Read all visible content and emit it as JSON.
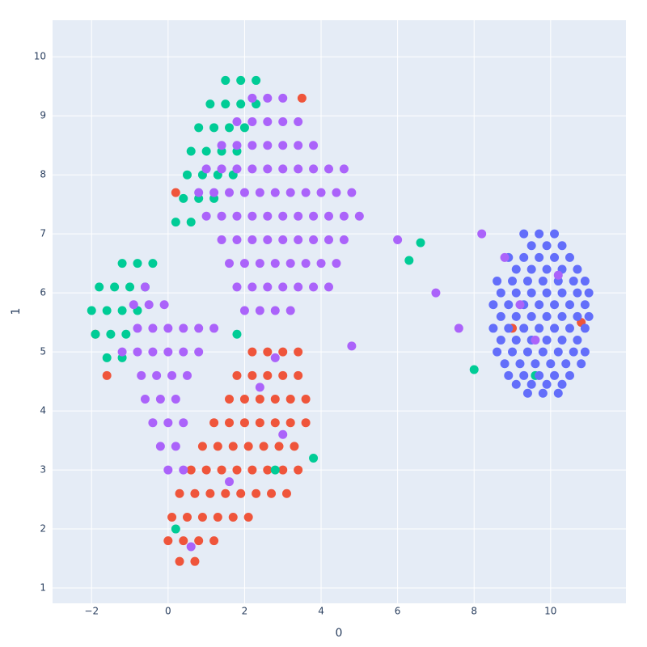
{
  "chart_data": {
    "type": "scatter",
    "x_label": "0",
    "y_label": "1",
    "xlim": [
      -3.02,
      11.97
    ],
    "ylim": [
      0.74,
      10.62
    ],
    "xticks": [
      {
        "value": -2,
        "label": "−2"
      },
      0,
      2,
      4,
      6,
      8,
      10
    ],
    "yticks": [
      1,
      2,
      3,
      4,
      5,
      6,
      7,
      8,
      9,
      10
    ],
    "grid": true,
    "series": [
      {
        "color": "#ef553b",
        "x": [
          2.2,
          2.6,
          3.0,
          3.4,
          1.8,
          2.2,
          2.6,
          3.0,
          3.4,
          1.6,
          2.0,
          2.4,
          2.8,
          3.2,
          3.6,
          1.2,
          1.6,
          2.0,
          2.4,
          2.8,
          3.2,
          3.6,
          0.9,
          1.3,
          1.7,
          2.1,
          2.5,
          2.9,
          3.3,
          0.6,
          1.0,
          1.4,
          1.8,
          2.2,
          2.6,
          3.0,
          3.4,
          0.3,
          0.7,
          1.1,
          1.5,
          1.9,
          2.3,
          2.7,
          3.1,
          0.1,
          0.5,
          0.9,
          1.3,
          1.7,
          2.1,
          0.0,
          0.4,
          0.8,
          1.2,
          0.3,
          0.7,
          -1.9,
          -1.6,
          3.5,
          10.8,
          9.0,
          0.2
        ],
        "values": [
          5.0,
          5.0,
          5.0,
          5.0,
          4.6,
          4.6,
          4.6,
          4.6,
          4.6,
          4.2,
          4.2,
          4.2,
          4.2,
          4.2,
          4.2,
          3.8,
          3.8,
          3.8,
          3.8,
          3.8,
          3.8,
          3.8,
          3.4,
          3.4,
          3.4,
          3.4,
          3.4,
          3.4,
          3.4,
          3.0,
          3.0,
          3.0,
          3.0,
          3.0,
          3.0,
          3.0,
          3.0,
          2.6,
          2.6,
          2.6,
          2.6,
          2.6,
          2.6,
          2.6,
          2.6,
          2.2,
          2.2,
          2.2,
          2.2,
          2.2,
          2.2,
          1.8,
          1.8,
          1.8,
          1.8,
          1.45,
          1.45,
          5.3,
          4.6,
          9.3,
          5.5,
          5.4,
          7.7
        ]
      },
      {
        "color": "#00cc96",
        "x": [
          1.5,
          1.9,
          2.3,
          1.1,
          1.5,
          1.9,
          2.3,
          0.8,
          1.2,
          1.6,
          2.0,
          0.6,
          1.0,
          1.4,
          1.8,
          0.5,
          0.9,
          1.3,
          1.7,
          0.4,
          0.8,
          1.2,
          0.2,
          0.6,
          -1.2,
          -0.8,
          -0.4,
          -1.8,
          -1.4,
          -1.0,
          -0.6,
          -2.0,
          -1.6,
          -1.2,
          -0.8,
          -1.9,
          -1.5,
          -1.1,
          -1.6,
          -1.2,
          6.6,
          6.3,
          1.8,
          2.8,
          0.2,
          9.6,
          8.0,
          3.8
        ],
        "values": [
          9.6,
          9.6,
          9.6,
          9.2,
          9.2,
          9.2,
          9.2,
          8.8,
          8.8,
          8.8,
          8.8,
          8.4,
          8.4,
          8.4,
          8.4,
          8.0,
          8.0,
          8.0,
          8.0,
          7.6,
          7.6,
          7.6,
          7.2,
          7.2,
          6.5,
          6.5,
          6.5,
          6.1,
          6.1,
          6.1,
          6.1,
          5.7,
          5.7,
          5.7,
          5.7,
          5.3,
          5.3,
          5.3,
          4.9,
          4.9,
          6.85,
          6.55,
          5.3,
          3.0,
          2.0,
          4.6,
          4.7,
          3.2
        ]
      },
      {
        "color": "#636efa",
        "x": [
          9.3,
          9.7,
          10.1,
          9.5,
          9.9,
          10.3,
          8.9,
          9.3,
          9.7,
          10.1,
          10.5,
          9.1,
          9.5,
          9.9,
          10.3,
          10.7,
          8.6,
          9.0,
          9.4,
          9.8,
          10.2,
          10.6,
          10.9,
          8.7,
          9.1,
          9.5,
          9.9,
          10.3,
          10.7,
          11.0,
          8.5,
          8.9,
          9.3,
          9.7,
          10.1,
          10.5,
          10.9,
          8.7,
          9.1,
          9.5,
          9.9,
          10.3,
          10.7,
          11.0,
          8.5,
          8.9,
          9.3,
          9.7,
          10.1,
          10.5,
          10.9,
          8.7,
          9.1,
          9.5,
          9.9,
          10.3,
          10.7,
          8.6,
          9.0,
          9.4,
          9.8,
          10.2,
          10.6,
          10.9,
          8.8,
          9.2,
          9.6,
          10.0,
          10.4,
          10.8,
          8.9,
          9.3,
          9.7,
          10.1,
          10.5,
          9.1,
          9.5,
          9.9,
          10.3,
          9.4,
          9.8,
          10.2
        ],
        "values": [
          7.0,
          7.0,
          7.0,
          6.8,
          6.8,
          6.8,
          6.6,
          6.6,
          6.6,
          6.6,
          6.6,
          6.4,
          6.4,
          6.4,
          6.4,
          6.4,
          6.2,
          6.2,
          6.2,
          6.2,
          6.2,
          6.2,
          6.2,
          6.0,
          6.0,
          6.0,
          6.0,
          6.0,
          6.0,
          6.0,
          5.8,
          5.8,
          5.8,
          5.8,
          5.8,
          5.8,
          5.8,
          5.6,
          5.6,
          5.6,
          5.6,
          5.6,
          5.6,
          5.6,
          5.4,
          5.4,
          5.4,
          5.4,
          5.4,
          5.4,
          5.4,
          5.2,
          5.2,
          5.2,
          5.2,
          5.2,
          5.2,
          5.0,
          5.0,
          5.0,
          5.0,
          5.0,
          5.0,
          5.0,
          4.8,
          4.8,
          4.8,
          4.8,
          4.8,
          4.8,
          4.6,
          4.6,
          4.6,
          4.6,
          4.6,
          4.45,
          4.45,
          4.45,
          4.45,
          4.3,
          4.3,
          4.3
        ]
      },
      {
        "color": "#ab63fa",
        "x": [
          2.2,
          2.6,
          3.0,
          1.8,
          2.2,
          2.6,
          3.0,
          3.4,
          1.4,
          1.8,
          2.2,
          2.6,
          3.0,
          3.4,
          3.8,
          1.0,
          1.4,
          1.8,
          2.2,
          2.6,
          3.0,
          3.4,
          3.8,
          4.2,
          4.6,
          0.8,
          1.2,
          1.6,
          2.0,
          2.4,
          2.8,
          3.2,
          3.6,
          4.0,
          4.4,
          4.8,
          1.0,
          1.4,
          1.8,
          2.2,
          2.6,
          3.0,
          3.4,
          3.8,
          4.2,
          4.6,
          5.0,
          1.4,
          1.8,
          2.2,
          2.6,
          3.0,
          3.4,
          3.8,
          4.2,
          4.6,
          1.6,
          2.0,
          2.4,
          2.8,
          3.2,
          3.6,
          4.0,
          4.4,
          1.8,
          2.2,
          2.6,
          3.0,
          3.4,
          3.8,
          4.2,
          2.0,
          2.4,
          2.8,
          3.2,
          -0.9,
          -0.5,
          -0.1,
          -0.8,
          -0.4,
          0.0,
          0.4,
          0.8,
          1.2,
          -0.8,
          -0.4,
          0.0,
          0.4,
          0.8,
          -0.7,
          -0.3,
          0.1,
          0.5,
          -0.6,
          -0.2,
          0.2,
          -0.4,
          0.0,
          0.4,
          -0.2,
          0.2,
          0.0,
          0.4,
          2.4,
          3.0,
          1.6,
          0.6,
          2.8,
          9.2,
          9.6,
          10.2,
          8.8,
          7.6,
          7.0,
          8.2,
          6.0,
          4.8,
          -0.6,
          -1.2
        ],
        "values": [
          9.3,
          9.3,
          9.3,
          8.9,
          8.9,
          8.9,
          8.9,
          8.9,
          8.5,
          8.5,
          8.5,
          8.5,
          8.5,
          8.5,
          8.5,
          8.1,
          8.1,
          8.1,
          8.1,
          8.1,
          8.1,
          8.1,
          8.1,
          8.1,
          8.1,
          7.7,
          7.7,
          7.7,
          7.7,
          7.7,
          7.7,
          7.7,
          7.7,
          7.7,
          7.7,
          7.7,
          7.3,
          7.3,
          7.3,
          7.3,
          7.3,
          7.3,
          7.3,
          7.3,
          7.3,
          7.3,
          7.3,
          6.9,
          6.9,
          6.9,
          6.9,
          6.9,
          6.9,
          6.9,
          6.9,
          6.9,
          6.5,
          6.5,
          6.5,
          6.5,
          6.5,
          6.5,
          6.5,
          6.5,
          6.1,
          6.1,
          6.1,
          6.1,
          6.1,
          6.1,
          6.1,
          5.7,
          5.7,
          5.7,
          5.7,
          5.8,
          5.8,
          5.8,
          5.4,
          5.4,
          5.4,
          5.4,
          5.4,
          5.4,
          5.0,
          5.0,
          5.0,
          5.0,
          5.0,
          4.6,
          4.6,
          4.6,
          4.6,
          4.2,
          4.2,
          4.2,
          3.8,
          3.8,
          3.8,
          3.4,
          3.4,
          3.0,
          3.0,
          4.4,
          3.6,
          2.8,
          1.7,
          4.9,
          5.8,
          5.2,
          6.3,
          6.6,
          5.4,
          6.0,
          7.0,
          6.9,
          5.1,
          6.1,
          5.0
        ]
      }
    ]
  }
}
